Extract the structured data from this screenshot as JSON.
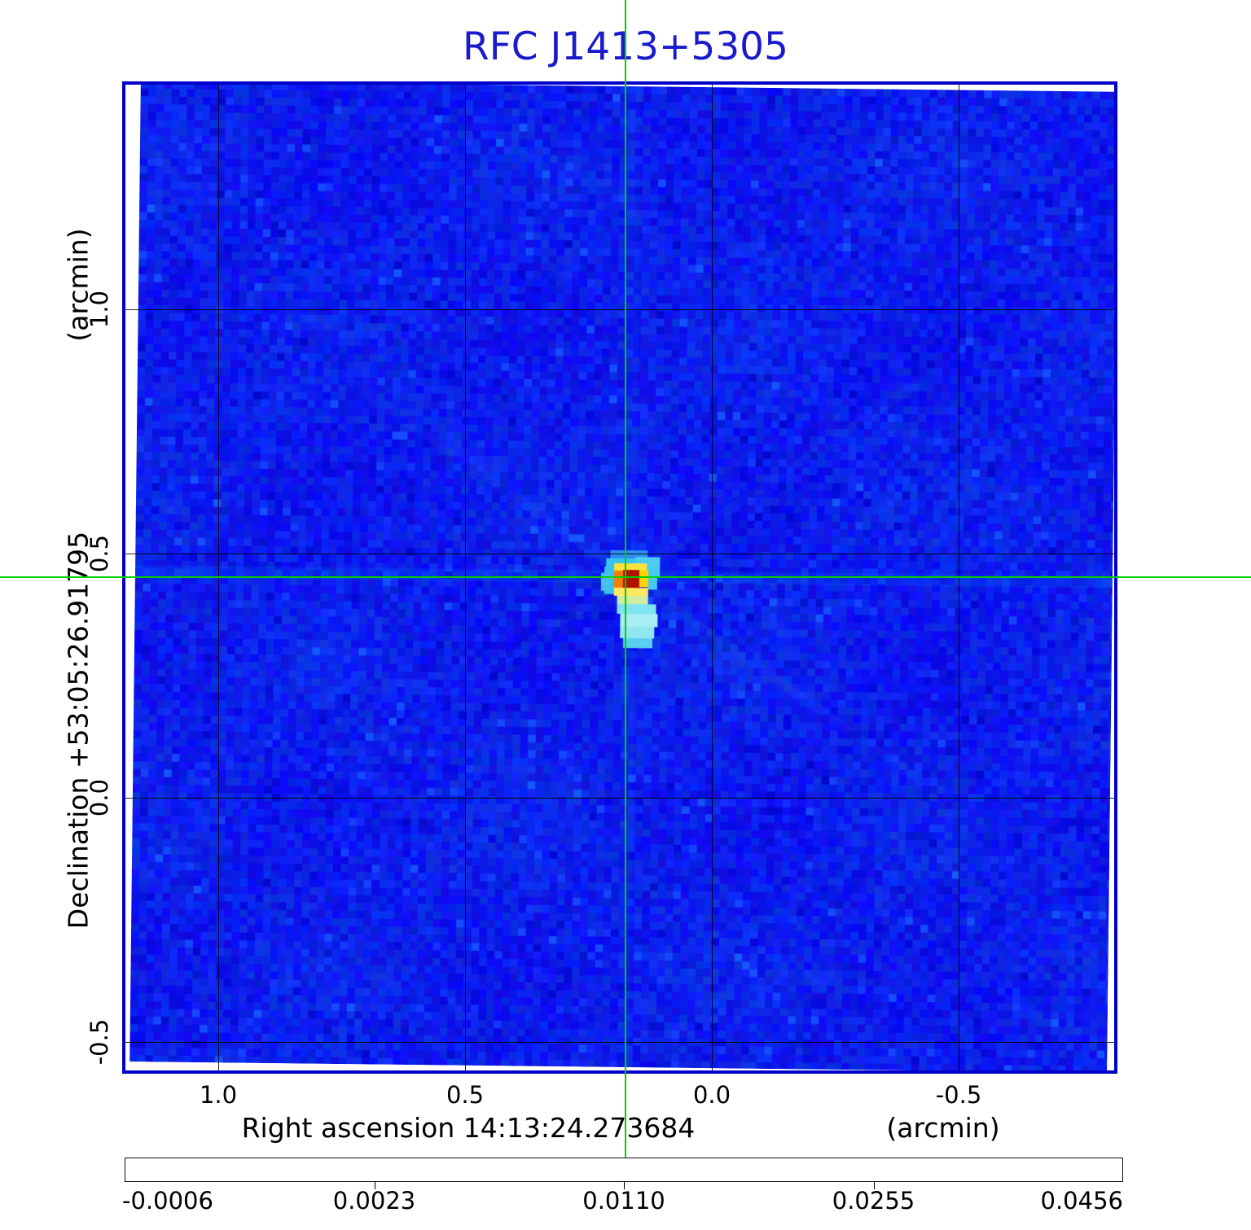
{
  "figure": {
    "title": "RFC J1413+5305",
    "title_color": "#1a1acd",
    "frame_color": "#0000c8",
    "crosshair_color": "#00cf00",
    "grid_color": "#000000",
    "x_axis": {
      "label": "Right ascension  14:13:24.273684",
      "unit": "(arcmin)",
      "ticks": [
        "1.0",
        "0.5",
        "0.0",
        "-0.5"
      ]
    },
    "y_axis": {
      "label": "Declination  +53:05:26.91795",
      "unit": "(arcmin)",
      "ticks": [
        "1.0",
        "0.5",
        "0.0",
        "-0.5"
      ]
    },
    "colorbar": {
      "tick_labels": [
        "-0.0006",
        "0.0023",
        "0.0110",
        "0.0255",
        "0.0456"
      ]
    }
  },
  "chart_data": {
    "type": "heatmap",
    "title": "RFC J1413+5305",
    "xlabel": "Right ascension  14:13:24.273684 (arcmin)",
    "ylabel": "Declination  +53:05:26.91795 (arcmin)",
    "x_ticks_arcmin": [
      1.0,
      0.5,
      0.0,
      -0.5
    ],
    "y_ticks_arcmin": [
      1.0,
      0.5,
      0.0,
      -0.5
    ],
    "x_range_arcmin": [
      1.19,
      -0.83
    ],
    "y_range_arcmin": [
      1.46,
      -0.56
    ],
    "grid": true,
    "legend_position": "none",
    "colorbar": {
      "scale": "sqrt",
      "min": -0.0006,
      "max": 0.0456,
      "tick_values": [
        -0.0006,
        0.0023,
        0.011,
        0.0255,
        0.0456
      ]
    },
    "crosshair_arcmin": {
      "x": 0.18,
      "y": 0.45
    },
    "source": {
      "peak_value": 0.0456,
      "x_arcmin": 0.18,
      "y_arcmin": 0.45,
      "morphology": "compact bright core with faint extension to the south"
    }
  }
}
